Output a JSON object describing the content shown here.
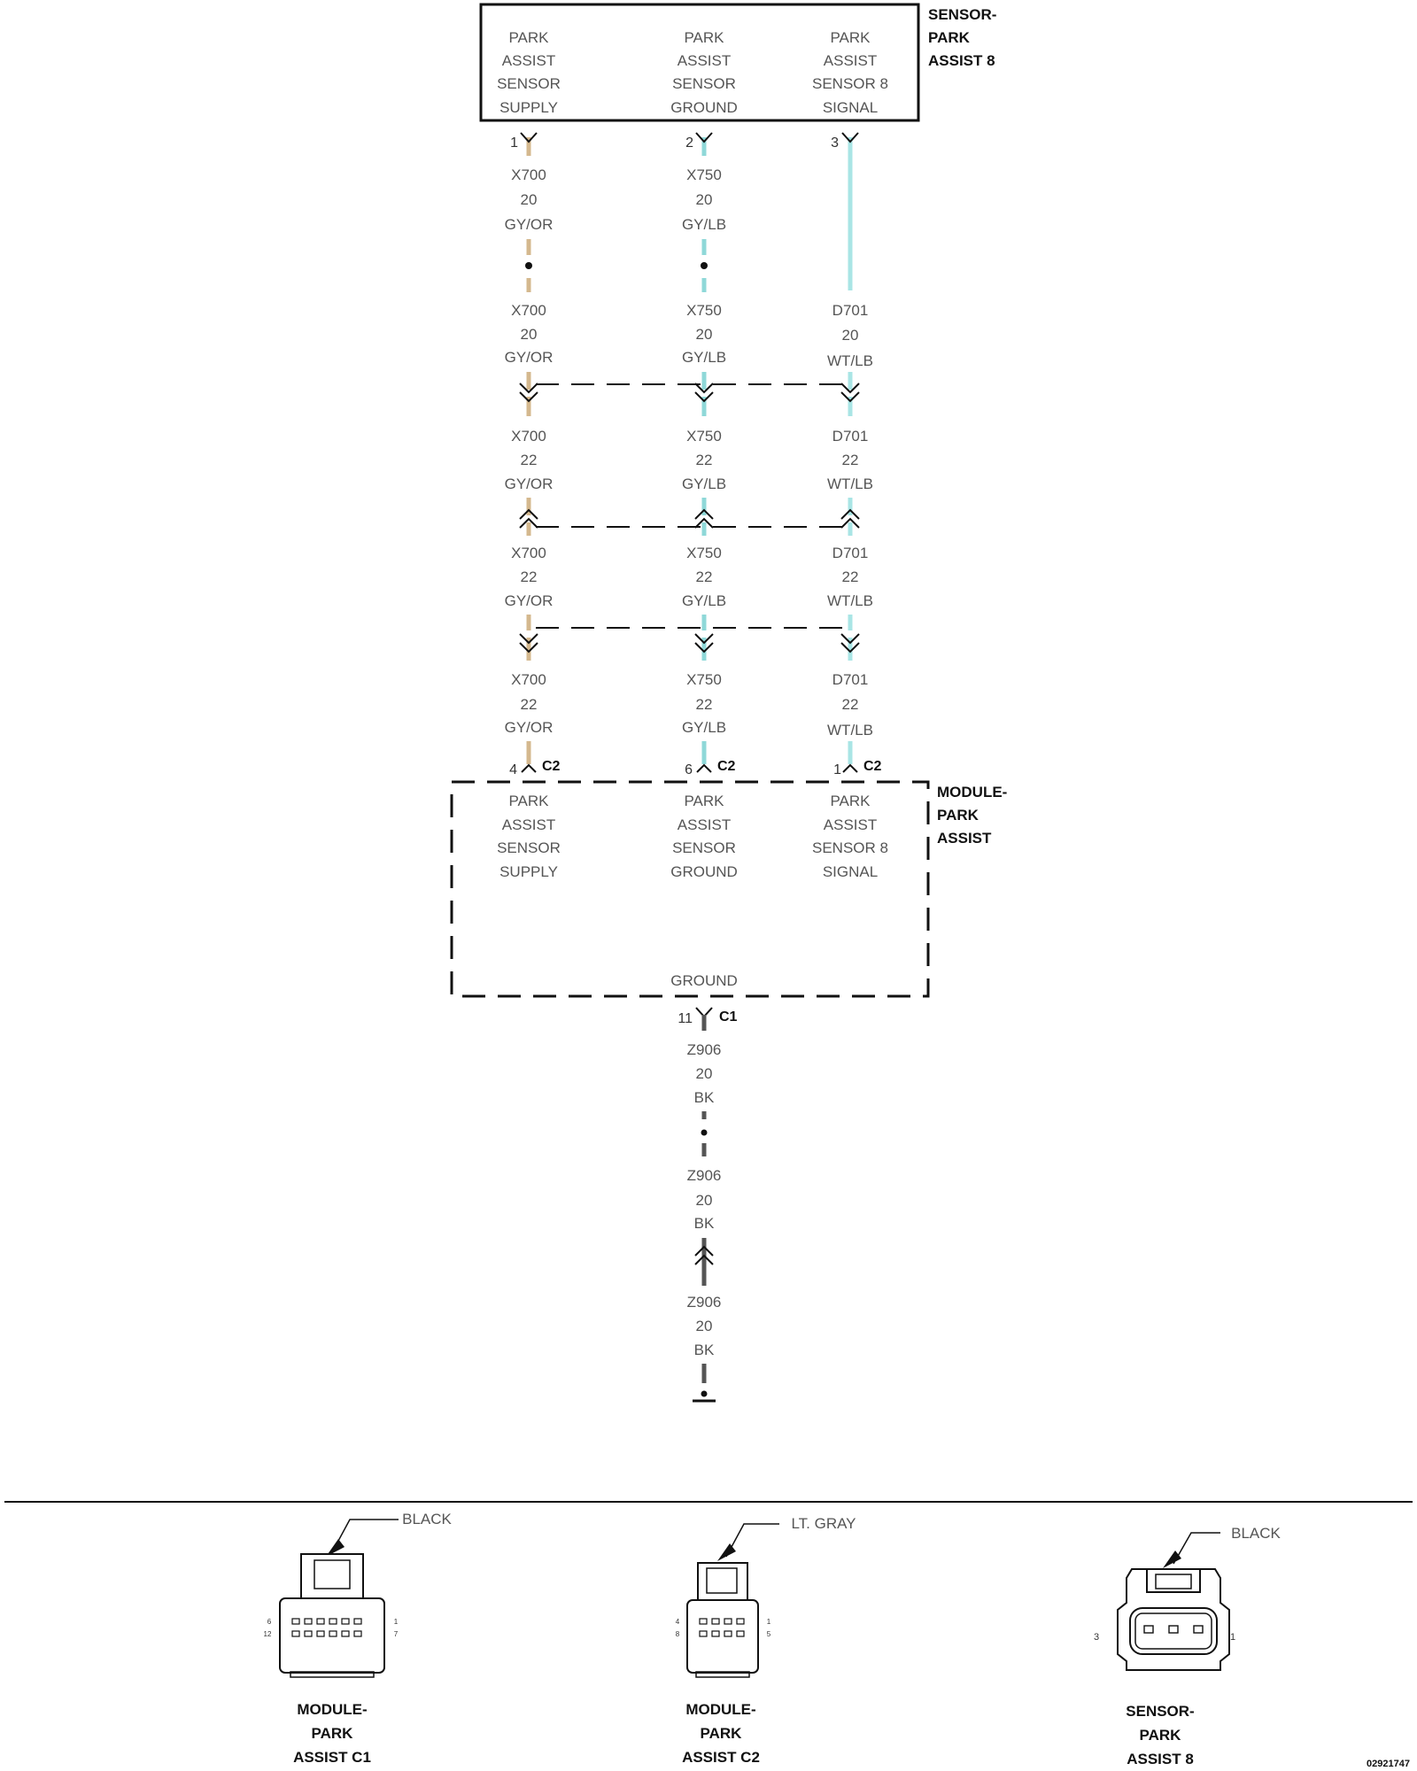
{
  "sensor": {
    "title": [
      "SENSOR-",
      "PARK",
      "ASSIST 8"
    ],
    "columns": [
      [
        "PARK",
        "ASSIST",
        "SENSOR",
        "SUPPLY"
      ],
      [
        "PARK",
        "ASSIST",
        "SENSOR",
        "GROUND"
      ],
      [
        "PARK",
        "ASSIST",
        "SENSOR 8",
        "SIGNAL"
      ]
    ],
    "pins": [
      "1",
      "2",
      "3"
    ]
  },
  "wires": {
    "colors": [
      "#d4b88e",
      "#8fd8d8",
      "#a9e5e5"
    ],
    "seg1": [
      [
        "X700",
        "20",
        "GY/OR"
      ],
      [
        "X750",
        "20",
        "GY/LB"
      ]
    ],
    "seg2": [
      [
        "X700",
        "20",
        "GY/OR"
      ],
      [
        "X750",
        "20",
        "GY/LB"
      ],
      [
        "D701",
        "20",
        "WT/LB"
      ]
    ],
    "seg3": [
      [
        "X700",
        "22",
        "GY/OR"
      ],
      [
        "X750",
        "22",
        "GY/LB"
      ],
      [
        "D701",
        "22",
        "WT/LB"
      ]
    ],
    "seg4": [
      [
        "X700",
        "22",
        "GY/OR"
      ],
      [
        "X750",
        "22",
        "GY/LB"
      ],
      [
        "D701",
        "22",
        "WT/LB"
      ]
    ],
    "seg5": [
      [
        "X700",
        "22",
        "GY/OR"
      ],
      [
        "X750",
        "22",
        "GY/LB"
      ],
      [
        "D701",
        "22",
        "WT/LB"
      ]
    ]
  },
  "module": {
    "title": [
      "MODULE-",
      "PARK",
      "ASSIST"
    ],
    "pins": [
      "4",
      "6",
      "1"
    ],
    "connector": "C2",
    "columns": [
      [
        "PARK",
        "ASSIST",
        "SENSOR",
        "SUPPLY"
      ],
      [
        "PARK",
        "ASSIST",
        "SENSOR",
        "GROUND"
      ],
      [
        "PARK",
        "ASSIST",
        "SENSOR 8",
        "SIGNAL"
      ]
    ],
    "ground_label": "GROUND",
    "ground_pin": "11",
    "ground_connector": "C1"
  },
  "ground_wire": {
    "color": "#555555",
    "segments": [
      [
        "Z906",
        "20",
        "BK"
      ],
      [
        "Z906",
        "20",
        "BK"
      ],
      [
        "Z906",
        "20",
        "BK"
      ]
    ]
  },
  "connector_views": [
    {
      "color_label": "BLACK",
      "name": [
        "MODULE-",
        "PARK",
        "ASSIST C1"
      ],
      "pins": [
        "6",
        "12",
        "1",
        "7"
      ]
    },
    {
      "color_label": "LT. GRAY",
      "name": [
        "MODULE-",
        "PARK",
        "ASSIST C2"
      ],
      "pins": [
        "4",
        "8",
        "1",
        "5"
      ]
    },
    {
      "color_label": "BLACK",
      "name": [
        "SENSOR-",
        "PARK",
        "ASSIST 8"
      ],
      "pins": [
        "3",
        "1"
      ]
    }
  ],
  "doc_number": "02921747"
}
